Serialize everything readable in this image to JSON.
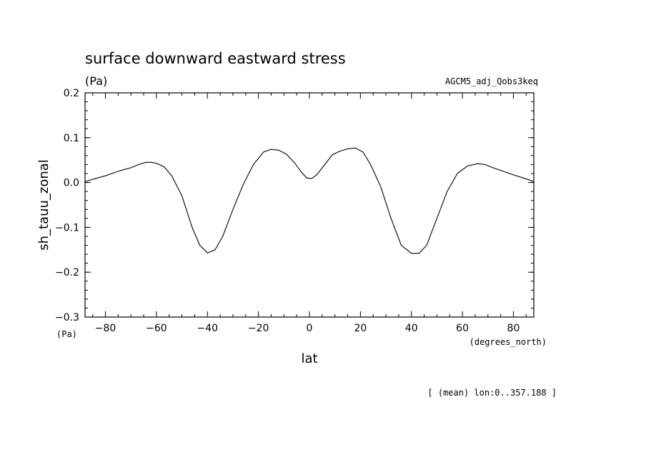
{
  "chart_data": {
    "type": "line",
    "title": "surface downward eastward stress",
    "units": "(Pa)",
    "dataset_label": "AGCM5_adj_Qobs3keq",
    "ylabel": "sh_tauu_zonal",
    "y_units_corner": "(Pa)",
    "xlabel": "lat",
    "x_units": "(degrees_north)",
    "footer": "[ (mean) lon:0..357.188 ]",
    "xlim": [
      -88,
      88
    ],
    "ylim": [
      -0.3,
      0.2
    ],
    "x_ticks": [
      -80,
      -60,
      -40,
      -20,
      0,
      20,
      40,
      60,
      80
    ],
    "x_tick_labels": [
      "−80",
      "−60",
      "−40",
      "−20",
      "0",
      "20",
      "40",
      "60",
      "80"
    ],
    "y_ticks": [
      0.2,
      0.1,
      0.0,
      -0.1,
      -0.2,
      -0.3
    ],
    "y_tick_labels": [
      "0.2",
      "0.1",
      "0.0",
      "−0.1",
      "−0.2",
      "−0.3"
    ],
    "grid": false,
    "series": [
      {
        "x": [
          -88,
          -85,
          -80,
          -75,
          -72,
          -70,
          -67,
          -64,
          -62,
          -60,
          -57,
          -54,
          -50,
          -46,
          -43,
          -40,
          -37,
          -34,
          -30,
          -26,
          -22,
          -18,
          -15,
          -12,
          -9,
          -6,
          -3,
          -1,
          1,
          3,
          6,
          9,
          12,
          15,
          18,
          21,
          24,
          28,
          32,
          36,
          40,
          43,
          46,
          50,
          54,
          58,
          62,
          66,
          69,
          72,
          76,
          80,
          84,
          88
        ],
        "y": [
          0.002,
          0.007,
          0.015,
          0.025,
          0.03,
          0.033,
          0.04,
          0.045,
          0.045,
          0.043,
          0.035,
          0.015,
          -0.03,
          -0.1,
          -0.14,
          -0.157,
          -0.15,
          -0.12,
          -0.06,
          -0.005,
          0.04,
          0.068,
          0.074,
          0.072,
          0.063,
          0.045,
          0.022,
          0.01,
          0.009,
          0.018,
          0.04,
          0.062,
          0.07,
          0.075,
          0.077,
          0.068,
          0.04,
          -0.01,
          -0.08,
          -0.14,
          -0.158,
          -0.158,
          -0.14,
          -0.08,
          -0.02,
          0.02,
          0.037,
          0.042,
          0.04,
          0.033,
          0.025,
          0.017,
          0.01,
          0.002
        ]
      }
    ]
  }
}
